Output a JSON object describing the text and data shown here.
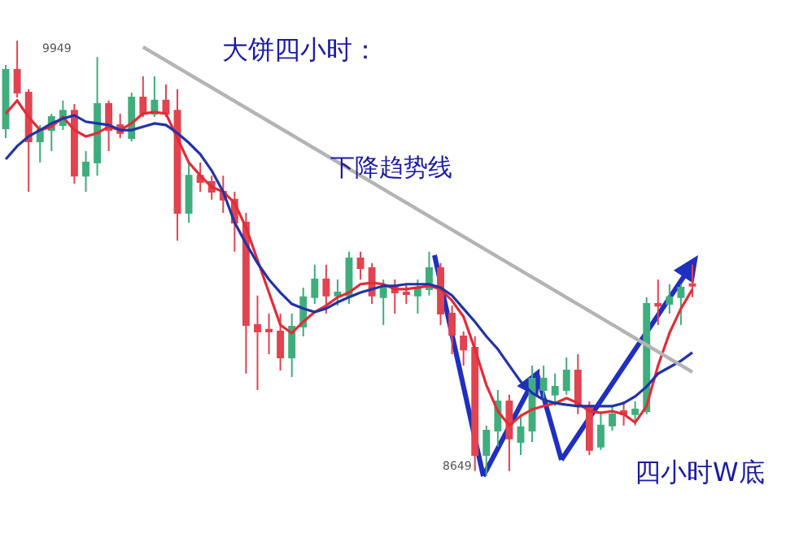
{
  "chart_data": {
    "type": "candlestick",
    "title": "大饼四小时：",
    "categories": [
      null,
      null,
      null,
      null,
      null,
      null,
      null,
      null,
      null,
      null,
      null,
      null,
      null,
      null,
      null,
      null,
      null,
      null,
      null,
      null,
      null,
      null,
      null,
      null,
      null,
      null,
      null,
      null,
      null,
      null,
      null,
      null,
      null,
      null,
      null,
      null,
      null,
      null,
      null,
      null,
      null,
      null,
      null,
      null,
      null,
      null,
      null,
      null,
      null,
      null,
      null,
      null,
      null,
      null,
      null,
      null,
      null,
      null,
      null,
      null,
      null
    ],
    "ohlc": [
      [
        9687,
        9876,
        9658,
        9862
      ],
      [
        9862,
        9949,
        9779,
        9794
      ],
      [
        9794,
        9804,
        9498,
        9648
      ],
      [
        9648,
        9697,
        9585,
        9682
      ],
      [
        9682,
        9731,
        9619,
        9721
      ],
      [
        9697,
        9770,
        9682,
        9740
      ],
      [
        9740,
        9760,
        9522,
        9546
      ],
      [
        9546,
        9619,
        9498,
        9585
      ],
      [
        9585,
        9900,
        9546,
        9760
      ],
      [
        9760,
        9770,
        9619,
        9682
      ],
      [
        9697,
        9731,
        9658,
        9673
      ],
      [
        9658,
        9794,
        9648,
        9779
      ],
      [
        9779,
        9842,
        9721,
        9731
      ],
      [
        9731,
        9842,
        9721,
        9770
      ],
      [
        9770,
        9818,
        9721,
        9731
      ],
      [
        9740,
        9804,
        9352,
        9435
      ],
      [
        9435,
        9585,
        9406,
        9546
      ],
      [
        9546,
        9585,
        9498,
        9527
      ],
      [
        9527,
        9546,
        9474,
        9498
      ],
      [
        9498,
        9546,
        9435,
        9474
      ],
      [
        9474,
        9498,
        9319,
        9406
      ],
      [
        9406,
        9435,
        8955,
        9100
      ],
      [
        9100,
        9188,
        8906,
        9081
      ],
      [
        9086,
        9134,
        9013,
        9081
      ],
      [
        9081,
        9134,
        8964,
        9003
      ],
      [
        9003,
        9134,
        8945,
        9095
      ],
      [
        9095,
        9212,
        9066,
        9183
      ],
      [
        9183,
        9280,
        9163,
        9236
      ],
      [
        9236,
        9280,
        9134,
        9188
      ],
      [
        9188,
        9236,
        9158,
        9197
      ],
      [
        9188,
        9319,
        9163,
        9299
      ],
      [
        9299,
        9319,
        9236,
        9270
      ],
      [
        9270,
        9285,
        9163,
        9188
      ],
      [
        9183,
        9236,
        9100,
        9212
      ],
      [
        9212,
        9236,
        9134,
        9197
      ],
      [
        9197,
        9222,
        9163,
        9192
      ],
      [
        9188,
        9236,
        9134,
        9207
      ],
      [
        9207,
        9319,
        9188,
        9270
      ],
      [
        9270,
        9285,
        9100,
        9134
      ],
      [
        9134,
        9158,
        9013,
        9071
      ],
      [
        9066,
        9081,
        8979,
        9027
      ],
      [
        9032,
        9066,
        8664,
        8712
      ],
      [
        8712,
        8800,
        8649,
        8785
      ],
      [
        8785,
        8906,
        8737,
        8872
      ],
      [
        8872,
        8892,
        8664,
        8761
      ],
      [
        8751,
        8834,
        8712,
        8795
      ],
      [
        8785,
        8979,
        8751,
        8940
      ],
      [
        8906,
        8979,
        8872,
        8940
      ],
      [
        8892,
        8955,
        8858,
        8916
      ],
      [
        8906,
        9003,
        8892,
        8964
      ],
      [
        8964,
        9013,
        8834,
        8858
      ],
      [
        8858,
        8872,
        8712,
        8727
      ],
      [
        8737,
        8843,
        8727,
        8800
      ],
      [
        8800,
        8858,
        8785,
        8834
      ],
      [
        8843,
        8872,
        8800,
        8834
      ],
      [
        8834,
        8872,
        8800,
        8848
      ],
      [
        8843,
        9183,
        8834,
        9163
      ],
      [
        9163,
        9236,
        9100,
        9158
      ],
      [
        9163,
        9222,
        9134,
        9183
      ],
      [
        9183,
        9222,
        9100,
        9212
      ],
      [
        9222,
        9280,
        9183,
        9217
      ]
    ],
    "colors": [
      "#3fae7c",
      "#e2434f",
      "#e2434f",
      "#3fae7c",
      "#3fae7c",
      "#3fae7c",
      "#e2434f",
      "#3fae7c",
      "#3fae7c",
      "#e2434f",
      "#e2434f",
      "#3fae7c",
      "#e2434f",
      "#3fae7c",
      "#e2434f",
      "#e2434f",
      "#3fae7c",
      "#e2434f",
      "#e2434f",
      "#e2434f",
      "#e2434f",
      "#e2434f",
      "#e2434f",
      "#e2434f",
      "#e2434f",
      "#3fae7c",
      "#3fae7c",
      "#3fae7c",
      "#e2434f",
      "#3fae7c",
      "#3fae7c",
      "#e2434f",
      "#e2434f",
      "#3fae7c",
      "#e2434f",
      "#e2434f",
      "#3fae7c",
      "#3fae7c",
      "#e2434f",
      "#e2434f",
      "#e2434f",
      "#e2434f",
      "#3fae7c",
      "#3fae7c",
      "#e2434f",
      "#3fae7c",
      "#3fae7c",
      "#3fae7c",
      "#3fae7c",
      "#3fae7c",
      "#e2434f",
      "#e2434f",
      "#3fae7c",
      "#3fae7c",
      "#e2434f",
      "#3fae7c",
      "#3fae7c",
      "#e2434f",
      "#3fae7c",
      "#3fae7c",
      "#e2434f"
    ],
    "series": [
      {
        "type": "line",
        "color": "#e52b36",
        "values": [
          9731,
          9770,
          9721,
          9682,
          9692,
          9721,
          9682,
          9663,
          9673,
          9692,
          9682,
          9702,
          9731,
          9736,
          9731,
          9658,
          9585,
          9546,
          9512,
          9498,
          9464,
          9391,
          9294,
          9197,
          9100,
          9076,
          9110,
          9139,
          9158,
          9183,
          9197,
          9222,
          9226,
          9222,
          9207,
          9207,
          9212,
          9217,
          9207,
          9173,
          9125,
          9028,
          8921,
          8843,
          8800,
          8829,
          8848,
          8858,
          8867,
          8882,
          8867,
          8843,
          8838,
          8843,
          8834,
          8809,
          8858,
          8979,
          9076,
          9149,
          9207
        ]
      },
      {
        "type": "line",
        "color": "#2233a8",
        "values": [
          9595,
          9634,
          9663,
          9682,
          9702,
          9716,
          9726,
          9707,
          9702,
          9697,
          9682,
          9682,
          9692,
          9702,
          9697,
          9673,
          9644,
          9610,
          9561,
          9498,
          9406,
          9343,
          9285,
          9236,
          9197,
          9163,
          9149,
          9139,
          9149,
          9168,
          9183,
          9197,
          9207,
          9217,
          9217,
          9222,
          9222,
          9222,
          9212,
          9188,
          9149,
          9110,
          9066,
          9028,
          8979,
          8931,
          8897,
          8877,
          8867,
          8862,
          8858,
          8858,
          8858,
          8858,
          8867,
          8887,
          8916,
          8955,
          8974,
          8993,
          9018
        ]
      },
      {
        "type": "line",
        "color": "#b4b4b4",
        "values": [
          null,
          null,
          null,
          null,
          null,
          null,
          null,
          null,
          null,
          null,
          null,
          null,
          9930,
          null,
          null,
          null,
          null,
          null,
          null,
          null,
          null,
          null,
          null,
          null,
          null,
          null,
          null,
          null,
          null,
          null,
          null,
          null,
          null,
          null,
          null,
          null,
          null,
          null,
          null,
          null,
          null,
          null,
          null,
          null,
          null,
          null,
          null,
          null,
          null,
          null,
          null,
          null,
          null,
          null,
          null,
          null,
          null,
          null,
          null,
          null,
          8960
        ]
      }
    ],
    "annotations": [
      "9949",
      "8649",
      "下降趋势线",
      "四小时W底"
    ],
    "tick_labels": false
  }
}
